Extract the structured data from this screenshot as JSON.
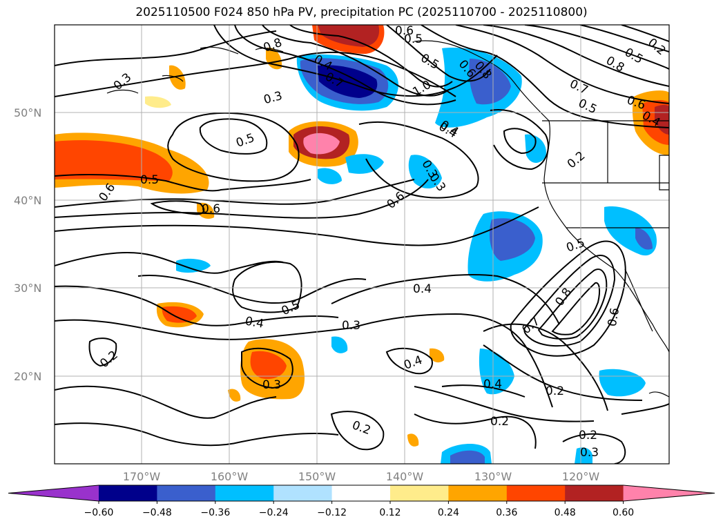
{
  "title": "2025110500 F024 850 hPa PV, precipitation PC (2025110700 - 2025110800)",
  "lat_labels": [
    "50°N",
    "40°N",
    "30°N",
    "20°N"
  ],
  "lon_labels": [
    "170°W",
    "160°W",
    "150°W",
    "140°W",
    "130°W",
    "120°W"
  ],
  "colorbar": {
    "ticks": [
      "−0.60",
      "−0.48",
      "−0.36",
      "−0.24",
      "−0.12",
      "0.12",
      "0.24",
      "0.36",
      "0.48",
      "0.60"
    ],
    "colors": [
      "#9932cc",
      "#00008b",
      "#3a5fcd",
      "#00bfff",
      "#b0e2ff",
      "#ffffff",
      "#ffec8b",
      "#ffa500",
      "#ff4500",
      "#b22222",
      "#ff82ab"
    ]
  },
  "contour_labels": [
    "0.3",
    "0.8",
    "0.5",
    "0.6",
    "0.4",
    "0.7",
    "1.0",
    "0.5",
    "0.6",
    "0.4",
    "0.8",
    "0.5",
    "0.4",
    "0.7",
    "0.5",
    "0.8",
    "0.6",
    "0.3",
    "0.5",
    "0.6",
    "0.5",
    "0.6",
    "0.3",
    "0.4",
    "0.2",
    "0.3",
    "0.6",
    "0.5",
    "0.4",
    "0.3",
    "0.2",
    "0.4",
    "0.5",
    "0.7",
    "0.8",
    "0.6",
    "0.2",
    "0.4",
    "0.3",
    "0.4",
    "0.2",
    "0.2",
    "0.2",
    "0.3",
    "0.2"
  ]
}
